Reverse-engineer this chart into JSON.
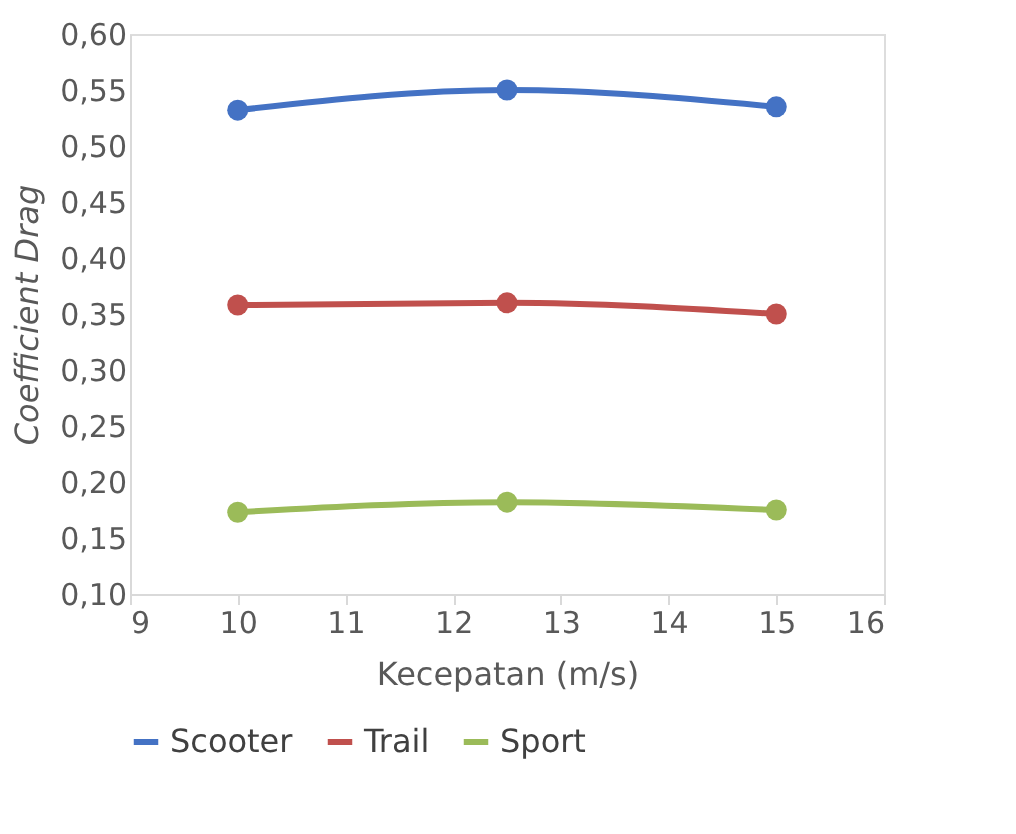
{
  "chart_data": {
    "type": "line",
    "xlabel": "Kecepatan (m/s)",
    "ylabel": "Coefficient Drag",
    "x": [
      10,
      12.5,
      15
    ],
    "series": [
      {
        "name": "Scooter",
        "color": "#4472c4",
        "values": [
          0.532,
          0.55,
          0.535
        ]
      },
      {
        "name": "Trail",
        "color": "#c0504d",
        "values": [
          0.358,
          0.36,
          0.35
        ]
      },
      {
        "name": "Sport",
        "color": "#9bbb59",
        "values": [
          0.173,
          0.182,
          0.175
        ]
      }
    ],
    "xlim": [
      9,
      16
    ],
    "xticks": [
      9,
      10,
      11,
      12,
      13,
      14,
      15,
      16
    ],
    "ylim": [
      0.1,
      0.6
    ],
    "yticks": [
      {
        "value": 0.1,
        "label": "0,10"
      },
      {
        "value": 0.15,
        "label": "0,15"
      },
      {
        "value": 0.2,
        "label": "0,20"
      },
      {
        "value": 0.25,
        "label": "0,25"
      },
      {
        "value": 0.3,
        "label": "0,30"
      },
      {
        "value": 0.35,
        "label": "0,35"
      },
      {
        "value": 0.4,
        "label": "0,40"
      },
      {
        "value": 0.45,
        "label": "0,45"
      },
      {
        "value": 0.5,
        "label": "0,50"
      },
      {
        "value": 0.55,
        "label": "0,55"
      },
      {
        "value": 0.6,
        "label": "0,60"
      }
    ],
    "grid": false,
    "legend": "bottom",
    "marker": "circle",
    "line_style": "solid"
  }
}
